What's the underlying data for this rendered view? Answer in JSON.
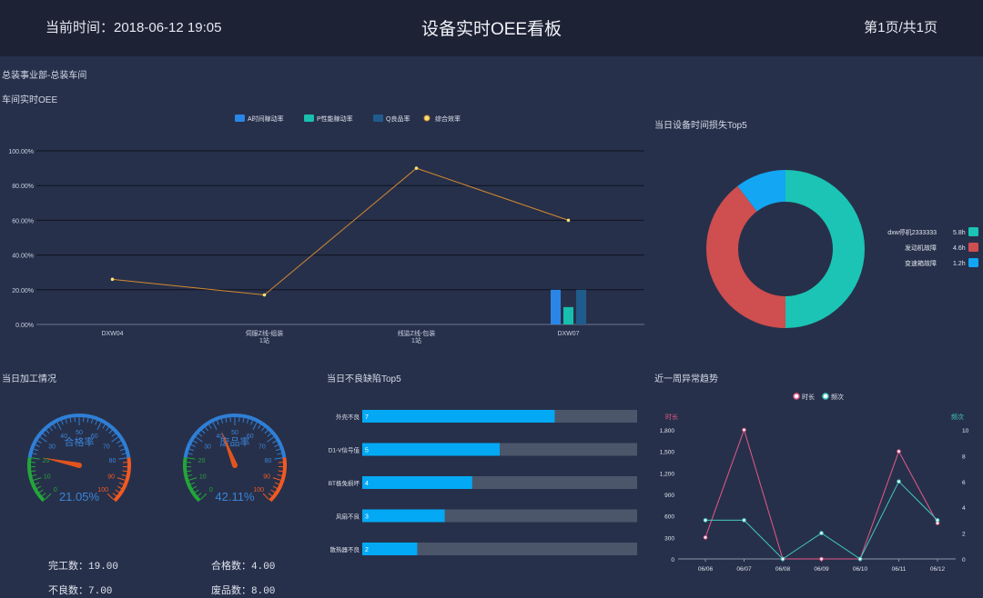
{
  "header": {
    "time": "当前时间：2018-06-12 19:05",
    "title": "设备实时OEE看板",
    "page": "第1页/共1页"
  },
  "breadcrumb": "总装事业部-总装车间",
  "oee_section": {
    "title": "车间实时OEE",
    "legend": [
      "A时间稼动率",
      "P性能稼动率",
      "Q良品率",
      "综合效率"
    ]
  },
  "loss_section": {
    "title": "当日设备时间损失Top5"
  },
  "process_section": {
    "title": "当日加工情况"
  },
  "defect_section": {
    "title": "当日不良缺陷Top5"
  },
  "trend_section": {
    "title": "近一周异常趋势",
    "legend": [
      "时长",
      "频次"
    ]
  },
  "gauges": {
    "yield": {
      "label": "合格率",
      "value": 21.05,
      "display": "21.05%"
    },
    "scrap": {
      "label": "废品率",
      "value": 42.11,
      "display": "42.11%"
    },
    "ticks": [
      "0",
      "10",
      "20",
      "30",
      "40",
      "50",
      "60",
      "70",
      "80",
      "90",
      "100"
    ]
  },
  "stats": {
    "done": "完工数：19.00",
    "bad": "不良数：7.00",
    "ok": "合格数：4.00",
    "scrap": "废品数：8.00"
  },
  "colors": {
    "bg": "#27304a",
    "header": "#1d2234",
    "a": "#2a86e6",
    "p": "#19bfae",
    "q": "#1f5b8c",
    "line": "#d4892f",
    "teal": "#1bc4b4",
    "red": "#cf4e4f",
    "blue": "#12a6f3",
    "bar": "#03a9f4",
    "track": "#4b566b",
    "pink": "#e45a8a",
    "cyan": "#42c9c0"
  },
  "chart_data": [
    {
      "type": "bar",
      "id": "oee",
      "categories": [
        "DXW04",
        "伺服Z线-组装1站",
        "线监Z线-包装1站",
        "DXW07"
      ],
      "series": [
        {
          "name": "A时间稼动率",
          "values": [
            0,
            0,
            0,
            20
          ]
        },
        {
          "name": "P性能稼动率",
          "values": [
            0,
            0,
            0,
            10
          ]
        },
        {
          "name": "Q良品率",
          "values": [
            0,
            0,
            0,
            20
          ]
        },
        {
          "name": "综合效率",
          "type": "line",
          "values": [
            26,
            17,
            90,
            60
          ]
        }
      ],
      "yticks": [
        "0.00%",
        "20.00%",
        "40.00%",
        "60.00%",
        "80.00%",
        "100.00%"
      ],
      "ylim": [
        0,
        100
      ],
      "legend_position": "top"
    },
    {
      "type": "pie",
      "id": "loss",
      "donut": true,
      "labels": [
        "dxw停机2333333",
        "发动机故障",
        "变速箱故障"
      ],
      "values": [
        5.8,
        4.6,
        1.2
      ],
      "value_labels": [
        "5.8h",
        "4.6h",
        "1.2h"
      ],
      "legend_position": "right"
    },
    {
      "type": "bar",
      "id": "defects",
      "orientation": "horizontal",
      "categories": [
        "外壳不良",
        "D1-V信号值",
        "BT极免损坏",
        "风扇不良",
        "散热器不良"
      ],
      "values": [
        7,
        5,
        4,
        3,
        2
      ],
      "xlim": [
        0,
        10
      ]
    },
    {
      "type": "line",
      "id": "trend",
      "categories": [
        "06/06",
        "06/07",
        "06/08",
        "06/09",
        "06/10",
        "06/11",
        "06/12"
      ],
      "series": [
        {
          "name": "时长",
          "values": [
            300,
            1800,
            0,
            0,
            0,
            1500,
            500
          ],
          "axis": "left"
        },
        {
          "name": "频次",
          "values": [
            3,
            3,
            0,
            2,
            0,
            6,
            3
          ],
          "axis": "right"
        }
      ],
      "ylabel": "时长",
      "y2label": "频次",
      "yticks": [
        "0",
        "300",
        "600",
        "900",
        "1,200",
        "1,500",
        "1,800"
      ],
      "y2ticks": [
        "0",
        "2",
        "4",
        "6",
        "8",
        "10"
      ],
      "ylim": [
        0,
        1800
      ],
      "y2lim": [
        0,
        10
      ],
      "legend_position": "top"
    }
  ]
}
